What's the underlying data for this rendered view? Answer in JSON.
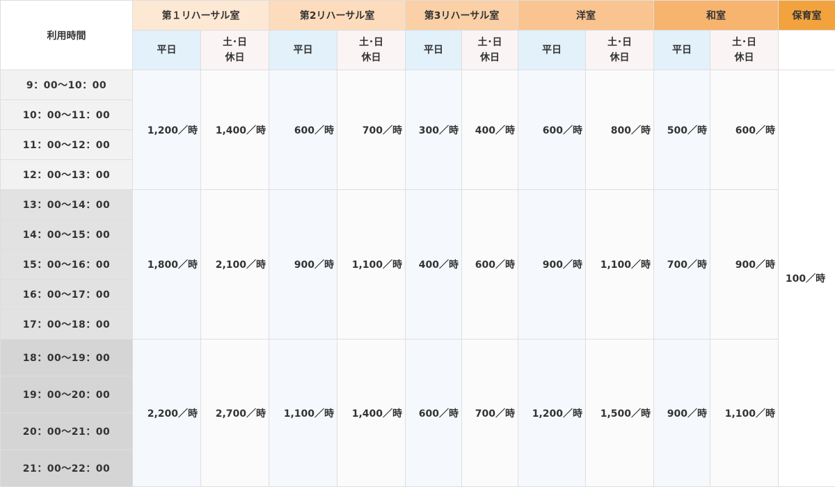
{
  "header": {
    "time_label": "利用時間",
    "rooms": [
      "第１リハーサル室",
      "第2リハーサル室",
      "第3リハーサル室",
      "洋室",
      "和室",
      "保育室"
    ],
    "weekday_label": "平日",
    "holiday_label_line1": "土･日",
    "holiday_label_line2": "休日"
  },
  "time_slots": [
    "9：00～10：00",
    "10：00～11：00",
    "11：00～12：00",
    "12：00～13：00",
    "13：00～14：00",
    "14：00～15：00",
    "15：00～16：00",
    "16：00～17：00",
    "17：00～18：00",
    "18：00～19：00",
    "19：00～20：00",
    "20：00～21：00",
    "21：00～22：00"
  ],
  "rates": {
    "morning": [
      "1,200／時",
      "1,400／時",
      "600／時",
      "700／時",
      "300／時",
      "400／時",
      "600／時",
      "800／時",
      "500／時",
      "600／時"
    ],
    "afternoon": [
      "1,800／時",
      "2,100／時",
      "900／時",
      "1,100／時",
      "400／時",
      "600／時",
      "900／時",
      "1,100／時",
      "700／時",
      "900／時"
    ],
    "evening": [
      "2,200／時",
      "2,700／時",
      "1,100／時",
      "1,400／時",
      "600／時",
      "700／時",
      "1,200／時",
      "1,500／時",
      "900／時",
      "1,100／時"
    ],
    "nursery": "100／時"
  }
}
